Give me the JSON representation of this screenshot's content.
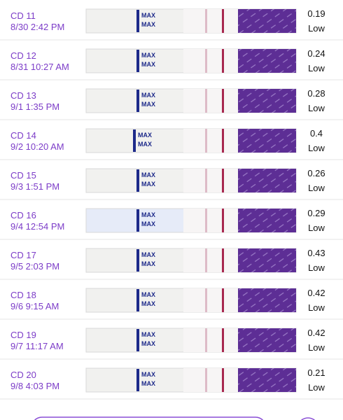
{
  "strip_label": "MAX",
  "entries": [
    {
      "day": "CD 11",
      "datetime": "8/30 2:42 PM",
      "value": 0.19,
      "level": "Low"
    },
    {
      "day": "CD 12",
      "datetime": "8/31 10:27 AM",
      "value": 0.24,
      "level": "Low"
    },
    {
      "day": "CD 13",
      "datetime": "9/1 1:35 PM",
      "value": 0.28,
      "level": "Low"
    },
    {
      "day": "CD 14",
      "datetime": "9/2 10:20 AM",
      "value": 0.4,
      "level": "Low"
    },
    {
      "day": "CD 15",
      "datetime": "9/3 1:51 PM",
      "value": 0.26,
      "level": "Low"
    },
    {
      "day": "CD 16",
      "datetime": "9/4 12:54 PM",
      "value": 0.29,
      "level": "Low"
    },
    {
      "day": "CD 17",
      "datetime": "9/5 2:03 PM",
      "value": 0.43,
      "level": "Low"
    },
    {
      "day": "CD 18",
      "datetime": "9/6 9:15 AM",
      "value": 0.42,
      "level": "Low"
    },
    {
      "day": "CD 19",
      "datetime": "9/7 11:17 AM",
      "value": 0.42,
      "level": "Low"
    },
    {
      "day": "CD 20",
      "datetime": "9/8 4:03 PM",
      "value": 0.21,
      "level": "Low"
    }
  ]
}
